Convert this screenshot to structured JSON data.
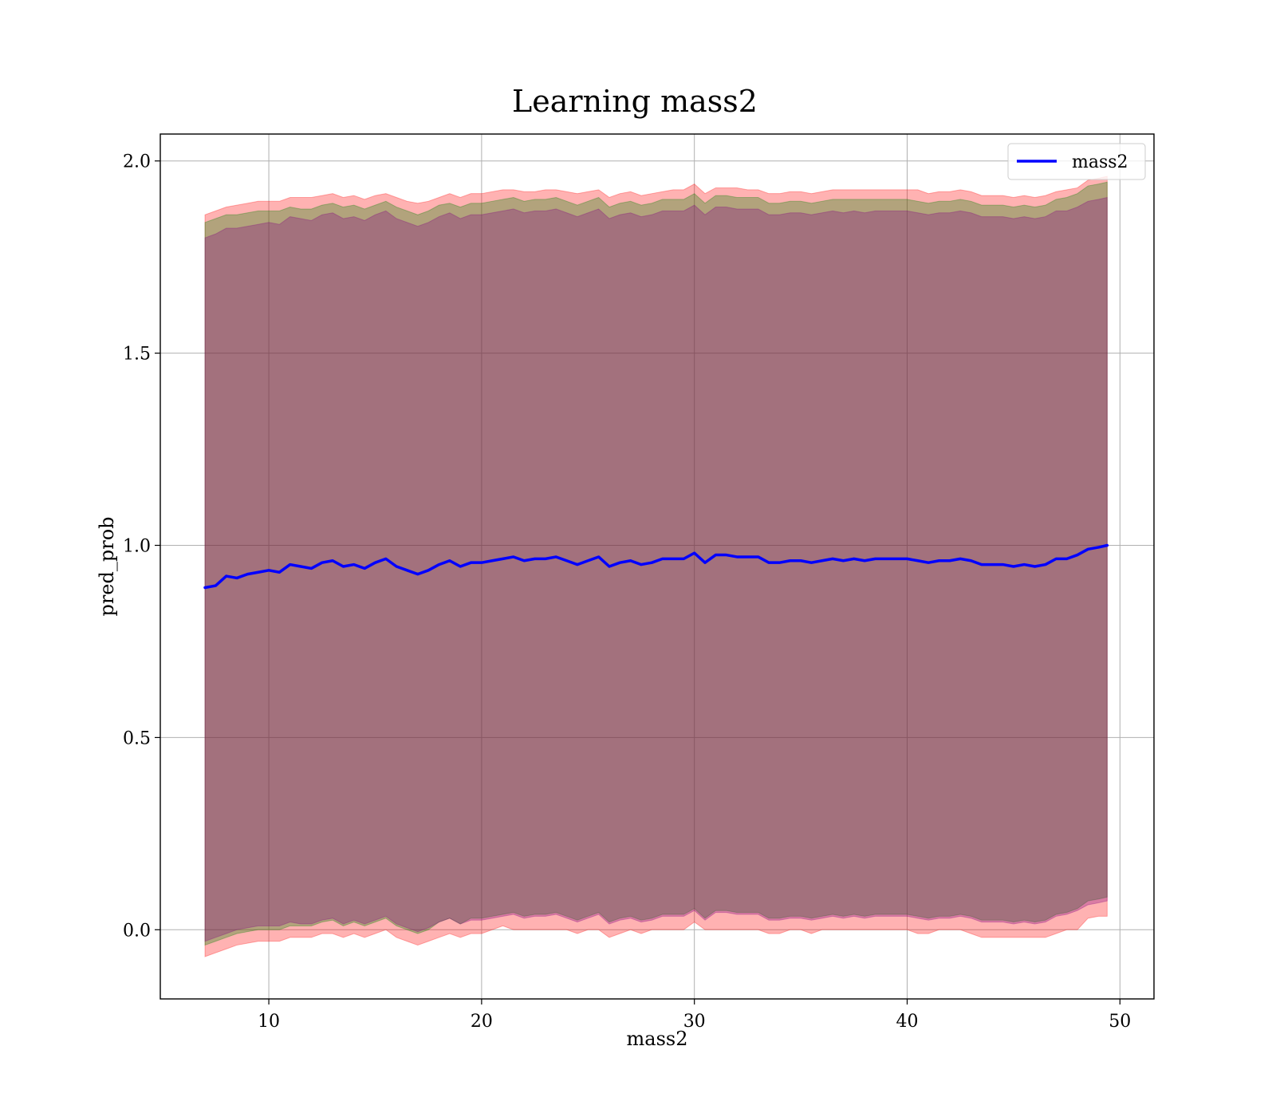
{
  "chart_data": {
    "type": "line",
    "title": "Learning mass2",
    "xlabel": "mass2",
    "ylabel": "pred_prob",
    "xlim": [
      4.9,
      51.6
    ],
    "ylim": [
      -0.18,
      2.07
    ],
    "xticks": [
      10,
      20,
      30,
      40,
      50
    ],
    "xtick_labels": [
      "10",
      "20",
      "30",
      "40",
      "50"
    ],
    "yticks": [
      0.0,
      0.5,
      1.0,
      1.5,
      2.0
    ],
    "ytick_labels": [
      "0.0",
      "0.5",
      "1.0",
      "1.5",
      "2.0"
    ],
    "grid": true,
    "legend_position": "top-right",
    "series": [
      {
        "name": "mass2",
        "color": "#0000ff",
        "x": [
          7.0,
          7.5,
          8.0,
          8.5,
          9.0,
          9.5,
          10.0,
          10.5,
          11.0,
          11.5,
          12.0,
          12.5,
          13.0,
          13.5,
          14.0,
          14.5,
          15.0,
          15.5,
          16.0,
          16.5,
          17.0,
          17.5,
          18.0,
          18.5,
          19.0,
          19.5,
          20.0,
          20.5,
          21.0,
          21.5,
          22.0,
          22.5,
          23.0,
          23.5,
          24.0,
          24.5,
          25.0,
          25.5,
          26.0,
          26.5,
          27.0,
          27.5,
          28.0,
          28.5,
          29.0,
          29.5,
          30.0,
          30.5,
          31.0,
          31.5,
          32.0,
          32.5,
          33.0,
          33.5,
          34.0,
          34.5,
          35.0,
          35.5,
          36.0,
          36.5,
          37.0,
          37.5,
          38.0,
          38.5,
          39.0,
          39.5,
          40.0,
          40.5,
          41.0,
          41.5,
          42.0,
          42.5,
          43.0,
          43.5,
          44.0,
          44.5,
          45.0,
          45.5,
          46.0,
          46.5,
          47.0,
          47.5,
          48.0,
          48.5,
          49.0,
          49.4
        ],
        "y": [
          0.89,
          0.895,
          0.92,
          0.915,
          0.925,
          0.93,
          0.935,
          0.93,
          0.95,
          0.945,
          0.94,
          0.955,
          0.96,
          0.945,
          0.95,
          0.94,
          0.955,
          0.965,
          0.945,
          0.935,
          0.925,
          0.935,
          0.95,
          0.96,
          0.945,
          0.955,
          0.955,
          0.96,
          0.965,
          0.97,
          0.96,
          0.965,
          0.965,
          0.97,
          0.96,
          0.95,
          0.96,
          0.97,
          0.945,
          0.955,
          0.96,
          0.95,
          0.955,
          0.965,
          0.965,
          0.965,
          0.98,
          0.955,
          0.975,
          0.975,
          0.97,
          0.97,
          0.97,
          0.955,
          0.955,
          0.96,
          0.96,
          0.955,
          0.96,
          0.965,
          0.96,
          0.965,
          0.96,
          0.965,
          0.965,
          0.965,
          0.965,
          0.96,
          0.955,
          0.96,
          0.96,
          0.965,
          0.96,
          0.95,
          0.95,
          0.95,
          0.945,
          0.95,
          0.945,
          0.95,
          0.965,
          0.965,
          0.975,
          0.99,
          0.995,
          1.0
        ]
      }
    ],
    "bands": [
      {
        "color": "#ff0000",
        "opacity": 0.3,
        "lower": [
          -0.07,
          -0.06,
          -0.05,
          -0.04,
          -0.035,
          -0.03,
          -0.03,
          -0.03,
          -0.02,
          -0.02,
          -0.02,
          -0.01,
          -0.01,
          -0.02,
          -0.01,
          -0.02,
          -0.01,
          0.0,
          -0.02,
          -0.03,
          -0.04,
          -0.03,
          -0.02,
          -0.01,
          -0.02,
          -0.01,
          -0.01,
          0.0,
          0.01,
          0.0,
          0.0,
          0.0,
          0.0,
          0.0,
          0.0,
          -0.01,
          0.0,
          0.0,
          -0.02,
          -0.01,
          0.0,
          -0.01,
          0.0,
          0.0,
          0.0,
          0.0,
          0.02,
          0.0,
          0.0,
          0.0,
          0.0,
          0.0,
          0.0,
          -0.01,
          -0.01,
          0.0,
          0.0,
          -0.01,
          0.0,
          0.0,
          0.0,
          0.0,
          0.0,
          0.0,
          0.0,
          0.0,
          0.0,
          -0.01,
          -0.01,
          0.0,
          0.0,
          0.0,
          -0.01,
          -0.02,
          -0.02,
          -0.02,
          -0.02,
          -0.02,
          -0.02,
          -0.02,
          -0.01,
          0.0,
          0.0,
          0.03,
          0.035,
          0.035
        ],
        "upper": [
          1.86,
          1.87,
          1.88,
          1.885,
          1.89,
          1.895,
          1.895,
          1.895,
          1.905,
          1.905,
          1.905,
          1.91,
          1.915,
          1.905,
          1.91,
          1.9,
          1.91,
          1.915,
          1.905,
          1.895,
          1.89,
          1.895,
          1.905,
          1.915,
          1.905,
          1.915,
          1.915,
          1.92,
          1.925,
          1.925,
          1.92,
          1.92,
          1.925,
          1.925,
          1.92,
          1.915,
          1.92,
          1.925,
          1.905,
          1.915,
          1.92,
          1.91,
          1.915,
          1.92,
          1.925,
          1.925,
          1.94,
          1.915,
          1.93,
          1.93,
          1.93,
          1.925,
          1.925,
          1.915,
          1.915,
          1.92,
          1.92,
          1.915,
          1.92,
          1.925,
          1.925,
          1.925,
          1.925,
          1.925,
          1.925,
          1.925,
          1.925,
          1.925,
          1.915,
          1.92,
          1.92,
          1.925,
          1.92,
          1.91,
          1.91,
          1.91,
          1.905,
          1.91,
          1.905,
          1.91,
          1.92,
          1.925,
          1.93,
          1.95,
          1.955,
          1.96
        ]
      },
      {
        "color": "#008000",
        "opacity": 0.3,
        "lower": [
          -0.04,
          -0.03,
          -0.02,
          -0.01,
          -0.005,
          0.0,
          0.0,
          0.0,
          0.01,
          0.01,
          0.01,
          0.02,
          0.025,
          0.01,
          0.02,
          0.01,
          0.02,
          0.03,
          0.01,
          0.0,
          -0.01,
          0.0,
          0.02,
          0.03,
          0.015,
          0.03,
          0.03,
          0.035,
          0.04,
          0.045,
          0.035,
          0.04,
          0.04,
          0.045,
          0.035,
          0.025,
          0.035,
          0.045,
          0.02,
          0.03,
          0.035,
          0.025,
          0.03,
          0.04,
          0.04,
          0.04,
          0.055,
          0.03,
          0.05,
          0.05,
          0.045,
          0.045,
          0.045,
          0.03,
          0.03,
          0.035,
          0.035,
          0.03,
          0.035,
          0.04,
          0.035,
          0.04,
          0.035,
          0.04,
          0.04,
          0.04,
          0.04,
          0.035,
          0.03,
          0.035,
          0.035,
          0.04,
          0.035,
          0.025,
          0.025,
          0.025,
          0.02,
          0.025,
          0.02,
          0.025,
          0.04,
          0.045,
          0.055,
          0.075,
          0.08,
          0.085
        ],
        "upper": [
          1.84,
          1.85,
          1.86,
          1.86,
          1.865,
          1.87,
          1.87,
          1.87,
          1.88,
          1.875,
          1.875,
          1.885,
          1.89,
          1.88,
          1.885,
          1.875,
          1.885,
          1.895,
          1.88,
          1.87,
          1.86,
          1.87,
          1.885,
          1.89,
          1.88,
          1.89,
          1.89,
          1.895,
          1.9,
          1.905,
          1.895,
          1.9,
          1.9,
          1.905,
          1.895,
          1.885,
          1.895,
          1.905,
          1.88,
          1.89,
          1.895,
          1.885,
          1.89,
          1.9,
          1.9,
          1.9,
          1.915,
          1.89,
          1.91,
          1.91,
          1.905,
          1.905,
          1.905,
          1.89,
          1.89,
          1.895,
          1.895,
          1.89,
          1.895,
          1.9,
          1.9,
          1.9,
          1.9,
          1.9,
          1.9,
          1.9,
          1.9,
          1.895,
          1.89,
          1.895,
          1.895,
          1.9,
          1.895,
          1.885,
          1.885,
          1.885,
          1.88,
          1.885,
          1.88,
          1.885,
          1.9,
          1.905,
          1.915,
          1.935,
          1.94,
          1.945
        ]
      },
      {
        "color": "#800080",
        "opacity": 0.3,
        "lower": [
          -0.03,
          -0.02,
          -0.01,
          0.0,
          0.005,
          0.01,
          0.01,
          0.01,
          0.02,
          0.015,
          0.015,
          0.025,
          0.03,
          0.015,
          0.025,
          0.015,
          0.025,
          0.035,
          0.015,
          0.005,
          -0.005,
          0.005,
          0.02,
          0.03,
          0.015,
          0.025,
          0.025,
          0.03,
          0.035,
          0.04,
          0.03,
          0.035,
          0.035,
          0.04,
          0.03,
          0.02,
          0.03,
          0.04,
          0.015,
          0.025,
          0.03,
          0.02,
          0.025,
          0.035,
          0.035,
          0.035,
          0.05,
          0.025,
          0.045,
          0.045,
          0.04,
          0.04,
          0.04,
          0.025,
          0.025,
          0.03,
          0.03,
          0.025,
          0.03,
          0.035,
          0.03,
          0.035,
          0.03,
          0.035,
          0.035,
          0.035,
          0.035,
          0.03,
          0.025,
          0.03,
          0.03,
          0.035,
          0.03,
          0.02,
          0.02,
          0.02,
          0.015,
          0.02,
          0.015,
          0.02,
          0.035,
          0.04,
          0.05,
          0.065,
          0.07,
          0.075
        ],
        "upper": [
          1.8,
          1.81,
          1.825,
          1.825,
          1.83,
          1.835,
          1.84,
          1.835,
          1.855,
          1.85,
          1.845,
          1.86,
          1.865,
          1.85,
          1.855,
          1.845,
          1.86,
          1.87,
          1.85,
          1.84,
          1.83,
          1.84,
          1.855,
          1.865,
          1.85,
          1.86,
          1.86,
          1.865,
          1.87,
          1.875,
          1.865,
          1.87,
          1.87,
          1.875,
          1.865,
          1.855,
          1.865,
          1.875,
          1.85,
          1.86,
          1.865,
          1.855,
          1.86,
          1.87,
          1.87,
          1.87,
          1.885,
          1.86,
          1.88,
          1.88,
          1.875,
          1.875,
          1.875,
          1.86,
          1.86,
          1.865,
          1.865,
          1.86,
          1.865,
          1.87,
          1.865,
          1.87,
          1.865,
          1.87,
          1.87,
          1.87,
          1.87,
          1.865,
          1.86,
          1.865,
          1.865,
          1.87,
          1.865,
          1.855,
          1.855,
          1.855,
          1.85,
          1.855,
          1.85,
          1.855,
          1.87,
          1.87,
          1.88,
          1.895,
          1.9,
          1.905
        ]
      }
    ]
  }
}
